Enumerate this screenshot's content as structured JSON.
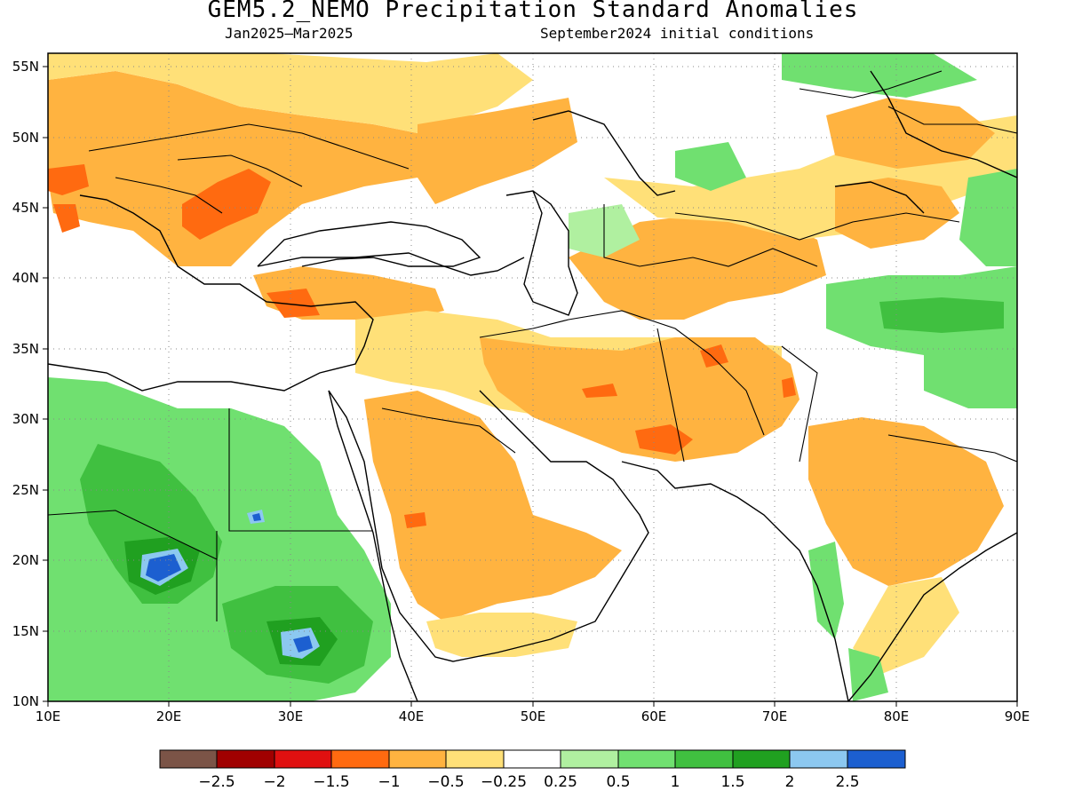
{
  "title": "GEM5.2_NEMO Precipitation Standard Anomalies",
  "subtitle_left": "Jan2025–Mar2025",
  "subtitle_right": "September2024 initial conditions",
  "map": {
    "region": "Middle East / North Africa / South Asia",
    "lon_range": [
      10,
      90
    ],
    "lat_range": [
      10,
      56
    ],
    "lon_ticks": [
      "10E",
      "20E",
      "30E",
      "40E",
      "50E",
      "60E",
      "70E",
      "80E",
      "90E"
    ],
    "lat_ticks": [
      "55N",
      "50N",
      "45N",
      "40N",
      "35N",
      "30N",
      "25N",
      "20N",
      "15N",
      "10N"
    ],
    "grid": "dotted"
  },
  "colorbar": {
    "colors": [
      "#7b5447",
      "#a00000",
      "#e01010",
      "#ff6a10",
      "#ffb340",
      "#ffe078",
      "#ffffff",
      "#b0f0a0",
      "#70e070",
      "#40c040",
      "#20a020",
      "#8cc8f0",
      "#1c5fd0"
    ],
    "labels": [
      "−2.5",
      "−2",
      "−1.5",
      "−1",
      "−0.5",
      "−0.25",
      "0.25",
      "0.5",
      "1",
      "1.5",
      "2",
      "2.5"
    ]
  }
}
